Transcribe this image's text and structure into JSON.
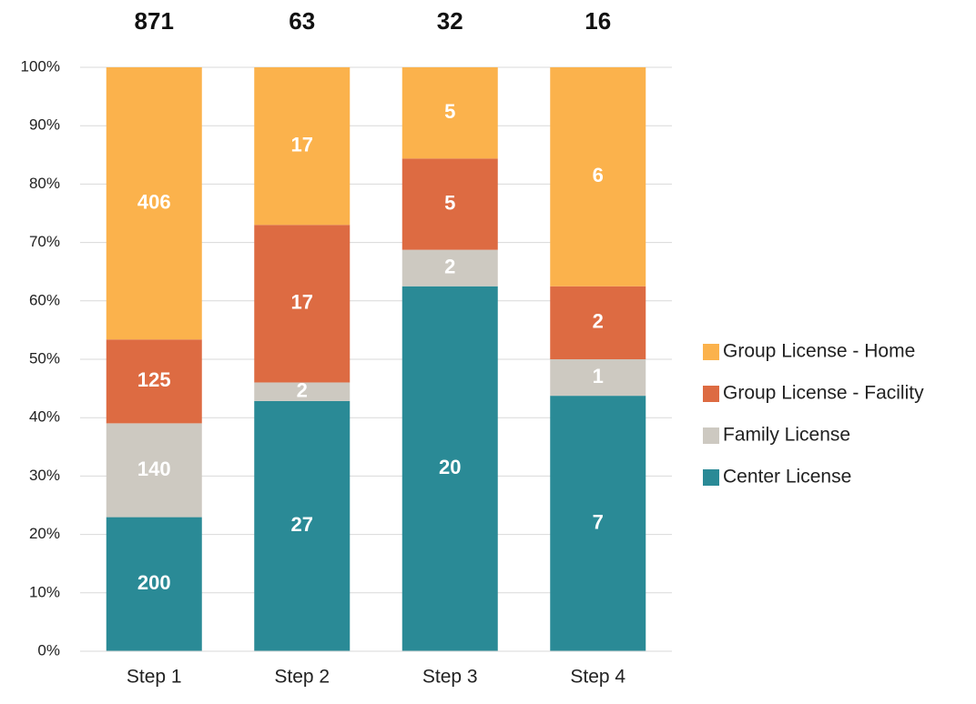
{
  "chart_data": {
    "type": "bar",
    "stack": "percent",
    "categories": [
      "Step 1",
      "Step 2",
      "Step 3",
      "Step 4"
    ],
    "totals": [
      871,
      63,
      32,
      16
    ],
    "series": [
      {
        "name": "Center License",
        "color": "#2a8a96",
        "values": [
          200,
          27,
          20,
          7
        ]
      },
      {
        "name": "Family License",
        "color": "#cdc9c1",
        "values": [
          140,
          2,
          2,
          1
        ]
      },
      {
        "name": "Group License - Facility",
        "color": "#dd6b42",
        "values": [
          125,
          17,
          5,
          2
        ]
      },
      {
        "name": "Group License - Home",
        "color": "#fbb24c",
        "values": [
          406,
          17,
          5,
          6
        ]
      }
    ],
    "ylim": [
      0,
      100
    ],
    "yticks": [
      {
        "value": 0,
        "label": "0%"
      },
      {
        "value": 10,
        "label": "10%"
      },
      {
        "value": 20,
        "label": "20%"
      },
      {
        "value": 30,
        "label": "30%"
      },
      {
        "value": 40,
        "label": "40%"
      },
      {
        "value": 50,
        "label": "50%"
      },
      {
        "value": 60,
        "label": "60%"
      },
      {
        "value": 70,
        "label": "70%"
      },
      {
        "value": 80,
        "label": "80%"
      },
      {
        "value": 90,
        "label": "90%"
      },
      {
        "value": 100,
        "label": "100%"
      }
    ],
    "grid": true,
    "legend": "right"
  }
}
